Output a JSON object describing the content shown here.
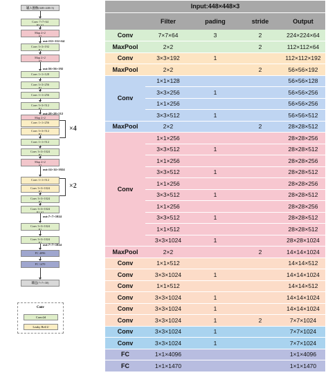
{
  "left_diagram": {
    "input_label": "输入图像(448×448×3)",
    "blocks": [
      {
        "t": "Conv 7×7×64",
        "s": "P3 S2",
        "c": "conv"
      },
      {
        "t": "Map 2×2",
        "s": "S2",
        "c": "pool"
      },
      {
        "t": "Conv 3×3×192",
        "s": "P1",
        "c": "conv"
      },
      {
        "t": "Map 2×2",
        "s": "S2",
        "c": "pool"
      },
      {
        "t": "Conv 1×1×128",
        "s": "",
        "c": "conv"
      },
      {
        "t": "Conv 3×3×256",
        "s": "P1",
        "c": "conv"
      },
      {
        "t": "Conv 1×1×256",
        "s": "",
        "c": "conv"
      },
      {
        "t": "Conv 3×3×512",
        "s": "P1",
        "c": "conv"
      },
      {
        "t": "Map 2×2",
        "s": "S2",
        "c": "pool"
      },
      {
        "t": "Conv 1×1×256",
        "s": "",
        "c": "convy"
      },
      {
        "t": "Conv 3×3×512",
        "s": "P1",
        "c": "convy"
      },
      {
        "t": "Conv 1×1×512",
        "s": "",
        "c": "conv"
      },
      {
        "t": "Conv 3×3×1024",
        "s": "P1",
        "c": "conv"
      },
      {
        "t": "Map 2×2",
        "s": "S2",
        "c": "pool"
      },
      {
        "t": "Conv 1×1×512",
        "s": "",
        "c": "convy"
      },
      {
        "t": "Conv 3×3×1024",
        "s": "P1",
        "c": "convy"
      },
      {
        "t": "Conv 3×3×1024",
        "s": "P1",
        "c": "conv"
      },
      {
        "t": "Conv 3×3×1024",
        "s": "P1 S2",
        "c": "conv"
      },
      {
        "t": "Conv 3×3×1024",
        "s": "P1",
        "c": "conv"
      },
      {
        "t": "Conv 3×3×1024",
        "s": "P1",
        "c": "conv"
      },
      {
        "t": "FC 4096",
        "s": "",
        "c": "fc"
      },
      {
        "t": "FC 1470",
        "s": "",
        "c": "fc"
      }
    ],
    "output_label": "输出(7×7×30)",
    "shape_labels": [
      "out:112×112×64",
      "out:56×56×192",
      "out:28×28×512",
      "out:14×14×1024",
      "out:7×7×1024",
      "out:7×7×1024"
    ],
    "repeat_labels": [
      "×4",
      "×2"
    ],
    "legend": {
      "title": "Conv",
      "item1": "Conv2d",
      "item2": "Leaky ReLU"
    }
  },
  "table": {
    "title": "Input:448×448×3",
    "headers": [
      "",
      "Filter",
      "pading",
      "stride",
      "Output"
    ],
    "rows": [
      {
        "name": "Conv",
        "filter": "7×7×64",
        "pad": "3",
        "stride": "2",
        "out": "224×224×64",
        "bg": "#d7eed2"
      },
      {
        "name": "MaxPool",
        "filter": "2×2",
        "pad": "",
        "stride": "2",
        "out": "112×112×64",
        "bg": "#d7eed2"
      },
      {
        "name": "Conv",
        "filter": "3×3×192",
        "pad": "1",
        "stride": "",
        "out": "112×112×192",
        "bg": "#fde4c2"
      },
      {
        "name": "MaxPool",
        "filter": "2×2",
        "pad": "",
        "stride": "2",
        "out": "56×56×192",
        "bg": "#fde4c2"
      },
      {
        "name": "",
        "filter": "1×1×128",
        "pad": "",
        "stride": "",
        "out": "56×56×128",
        "bg": "#bfd5f2"
      },
      {
        "name": "Conv",
        "filter": "3×3×256",
        "pad": "1",
        "stride": "",
        "out": "56×56×256",
        "bg": "#bfd5f2"
      },
      {
        "name": "",
        "filter": "1×1×256",
        "pad": "",
        "stride": "",
        "out": "56×56×256",
        "bg": "#bfd5f2"
      },
      {
        "name": "",
        "filter": "3×3×512",
        "pad": "1",
        "stride": "",
        "out": "56×56×512",
        "bg": "#bfd5f2"
      },
      {
        "name": "MaxPool",
        "filter": "2×2",
        "pad": "",
        "stride": "2",
        "out": "28×28×512",
        "bg": "#bfd5f2"
      },
      {
        "name": "",
        "filter": "1×1×256",
        "pad": "",
        "stride": "",
        "out": "28×28×256",
        "bg": "#f7c7d0"
      },
      {
        "name": "",
        "filter": "3×3×512",
        "pad": "1",
        "stride": "",
        "out": "28×28×512",
        "bg": "#f7c7d0"
      },
      {
        "name": "",
        "filter": "1×1×256",
        "pad": "",
        "stride": "",
        "out": "28×28×256",
        "bg": "#f7c7d0"
      },
      {
        "name": "",
        "filter": "3×3×512",
        "pad": "1",
        "stride": "",
        "out": "28×28×512",
        "bg": "#f7c7d0"
      },
      {
        "name": "",
        "filter": "1×1×256",
        "pad": "",
        "stride": "",
        "out": "28×28×256",
        "bg": "#f7c7d0"
      },
      {
        "name": "Conv",
        "filter": "3×3×512",
        "pad": "1",
        "stride": "",
        "out": "28×28×512",
        "bg": "#f7c7d0"
      },
      {
        "name": "",
        "filter": "1×1×256",
        "pad": "",
        "stride": "",
        "out": "28×28×256",
        "bg": "#f7c7d0"
      },
      {
        "name": "",
        "filter": "3×3×512",
        "pad": "1",
        "stride": "",
        "out": "28×28×512",
        "bg": "#f7c7d0"
      },
      {
        "name": "",
        "filter": "1×1×512",
        "pad": "",
        "stride": "",
        "out": "28×28×512",
        "bg": "#f7c7d0"
      },
      {
        "name": "",
        "filter": "3×3×1024",
        "pad": "1",
        "stride": "",
        "out": "28×28×1024",
        "bg": "#f7c7d0"
      },
      {
        "name": "MaxPool",
        "filter": "2×2",
        "pad": "",
        "stride": "2",
        "out": "14×14×1024",
        "bg": "#f7c7d0"
      },
      {
        "name": "Conv",
        "filter": "1×1×512",
        "pad": "",
        "stride": "",
        "out": "14×14×512",
        "bg": "#fcdcc8"
      },
      {
        "name": "Conv",
        "filter": "3×3×1024",
        "pad": "1",
        "stride": "",
        "out": "14×14×1024",
        "bg": "#fcdcc8"
      },
      {
        "name": "Conv",
        "filter": "1×1×512",
        "pad": "",
        "stride": "",
        "out": "14×14×512",
        "bg": "#fcdcc8"
      },
      {
        "name": "Conv",
        "filter": "3×3×1024",
        "pad": "1",
        "stride": "",
        "out": "14×14×1024",
        "bg": "#fcdcc8"
      },
      {
        "name": "Conv",
        "filter": "3×3×1024",
        "pad": "1",
        "stride": "",
        "out": "14×14×1024",
        "bg": "#fcdcc8"
      },
      {
        "name": "Conv",
        "filter": "3×3×1024",
        "pad": "1",
        "stride": "2",
        "out": "7×7×1024",
        "bg": "#fcdcc8"
      },
      {
        "name": "Conv",
        "filter": "3×3×1024",
        "pad": "1",
        "stride": "",
        "out": "7×7×1024",
        "bg": "#a9d3ef"
      },
      {
        "name": "Conv",
        "filter": "3×3×1024",
        "pad": "1",
        "stride": "",
        "out": "7×7×1024",
        "bg": "#a9d3ef"
      },
      {
        "name": "FC",
        "filter": "1×1×4096",
        "pad": "",
        "stride": "",
        "out": "1×1×4096",
        "bg": "#b8bde0"
      },
      {
        "name": "FC",
        "filter": "1×1×1470",
        "pad": "",
        "stride": "",
        "out": "1×1×1470",
        "bg": "#b8bde0"
      }
    ]
  }
}
